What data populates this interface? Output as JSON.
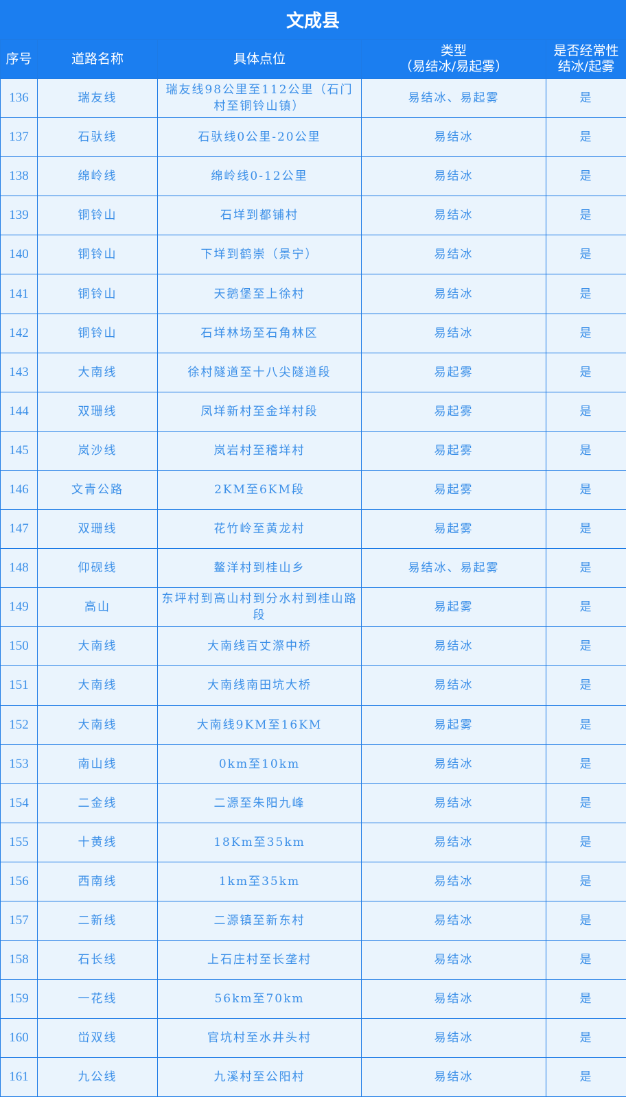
{
  "title": "文成县",
  "headers": [
    "序号",
    "道路名称",
    "具体点位",
    "类型\n（易结冰/易起雾）",
    "是否经常性\n结冰/起雾"
  ],
  "rows": [
    [
      "136",
      "瑞友线",
      "瑞友线98公里至112公里（石门村至铜铃山镇）",
      "易结冰、易起雾",
      "是"
    ],
    [
      "137",
      "石驮线",
      "石驮线0公里-20公里",
      "易结冰",
      "是"
    ],
    [
      "138",
      "绵岭线",
      "绵岭线0-12公里",
      "易结冰",
      "是"
    ],
    [
      "139",
      "铜铃山",
      "石垟到都铺村",
      "易结冰",
      "是"
    ],
    [
      "140",
      "铜铃山",
      "下垟到鹤崇（景宁）",
      "易结冰",
      "是"
    ],
    [
      "141",
      "铜铃山",
      "天鹅堡至上徐村",
      "易结冰",
      "是"
    ],
    [
      "142",
      "铜铃山",
      "石垟林场至石角林区",
      "易结冰",
      "是"
    ],
    [
      "143",
      "大南线",
      "徐村隧道至十八尖隧道段",
      "易起雾",
      "是"
    ],
    [
      "144",
      "双珊线",
      "凤垟新村至金垟村段",
      "易起雾",
      "是"
    ],
    [
      "145",
      "岚沙线",
      "岚岩村至稽垟村",
      "易起雾",
      "是"
    ],
    [
      "146",
      "文青公路",
      "2KM至6KM段",
      "易起雾",
      "是"
    ],
    [
      "147",
      "双珊线",
      "花竹岭至黄龙村",
      "易起雾",
      "是"
    ],
    [
      "148",
      "仰砚线",
      "鳌洋村到桂山乡",
      "易结冰、易起雾",
      "是"
    ],
    [
      "149",
      "高山",
      "东坪村到高山村到分水村到桂山路段",
      "易起雾",
      "是"
    ],
    [
      "150",
      "大南线",
      "大南线百丈漈中桥",
      "易结冰",
      "是"
    ],
    [
      "151",
      "大南线",
      "大南线南田坑大桥",
      "易结冰",
      "是"
    ],
    [
      "152",
      "大南线",
      "大南线9KM至16KM",
      "易起雾",
      "是"
    ],
    [
      "153",
      "南山线",
      "0km至10km",
      "易结冰",
      "是"
    ],
    [
      "154",
      "二金线",
      "二源至朱阳九峰",
      "易结冰",
      "是"
    ],
    [
      "155",
      "十黄线",
      "18Km至35km",
      "易结冰",
      "是"
    ],
    [
      "156",
      "西南线",
      "1km至35km",
      "易结冰",
      "是"
    ],
    [
      "157",
      "二新线",
      "二源镇至新东村",
      "易结冰",
      "是"
    ],
    [
      "158",
      "石长线",
      "上石庄村至长垄村",
      "易结冰",
      "是"
    ],
    [
      "159",
      "一花线",
      "56km至70km",
      "易结冰",
      "是"
    ],
    [
      "160",
      "峃双线",
      "官坑村至水井头村",
      "易结冰",
      "是"
    ],
    [
      "161",
      "九公线",
      "九溪村至公阳村",
      "易结冰",
      "是"
    ]
  ]
}
